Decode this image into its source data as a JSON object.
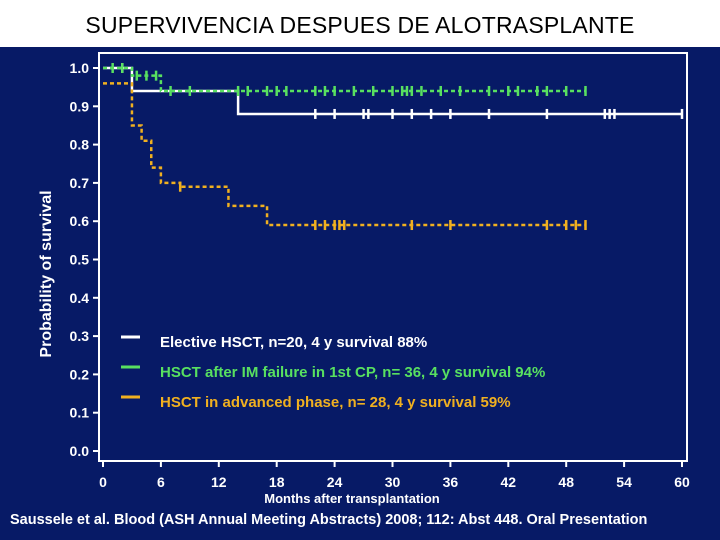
{
  "title": "SUPERVIVENCIA DESPUES DE ALOTRASPLANTE",
  "footer": "Saussele et al. Blood (ASH Annual Meeting Abstracts) 2008; 112: Abst 448. Oral Presentation",
  "chart_data": {
    "type": "line",
    "subtype": "kaplan-meier step curves",
    "xlabel": "Months after transplantation",
    "ylabel": "Probability of survival",
    "xlim": [
      0,
      60
    ],
    "ylim": [
      0,
      1
    ],
    "xticks": [
      "0",
      "6",
      "12",
      "18",
      "24",
      "30",
      "36",
      "42",
      "48",
      "54",
      "60"
    ],
    "yticks": [
      "0.0",
      "0.1",
      "0.2",
      "0.3",
      "0.4",
      "0.5",
      "0.6",
      "0.7",
      "0.8",
      "0.9",
      "1.0"
    ],
    "grid": false,
    "legend_position": "bottom-left",
    "series": [
      {
        "name": "Elective HSCT, n=20, 4 y survival 88%",
        "color": "#ffffff",
        "dash": false,
        "steps": [
          [
            0,
            1.0
          ],
          [
            3,
            0.94
          ],
          [
            14,
            0.88
          ],
          [
            60,
            0.88
          ]
        ],
        "censored": [
          [
            2,
            1.0
          ],
          [
            22,
            0.88
          ],
          [
            24,
            0.88
          ],
          [
            27,
            0.88
          ],
          [
            27.5,
            0.88
          ],
          [
            30,
            0.88
          ],
          [
            32,
            0.88
          ],
          [
            34,
            0.88
          ],
          [
            36,
            0.88
          ],
          [
            40,
            0.88
          ],
          [
            46,
            0.88
          ],
          [
            52,
            0.88
          ],
          [
            52.5,
            0.88
          ],
          [
            53,
            0.88
          ],
          [
            60,
            0.88
          ]
        ]
      },
      {
        "name": "HSCT after IM failure in 1st CP, n= 36, 4 y survival 94%",
        "color": "#58e060",
        "dash": true,
        "steps": [
          [
            0,
            1.0
          ],
          [
            3,
            0.98
          ],
          [
            6,
            0.94
          ],
          [
            50,
            0.94
          ]
        ],
        "censored": [
          [
            1,
            1.0
          ],
          [
            2,
            1.0
          ],
          [
            3.5,
            0.98
          ],
          [
            4.5,
            0.98
          ],
          [
            5.5,
            0.98
          ],
          [
            7,
            0.94
          ],
          [
            9,
            0.94
          ],
          [
            14,
            0.94
          ],
          [
            15,
            0.94
          ],
          [
            17,
            0.94
          ],
          [
            18,
            0.94
          ],
          [
            19,
            0.94
          ],
          [
            22,
            0.94
          ],
          [
            23,
            0.94
          ],
          [
            24,
            0.94
          ],
          [
            26,
            0.94
          ],
          [
            28,
            0.94
          ],
          [
            30,
            0.94
          ],
          [
            31,
            0.94
          ],
          [
            31.5,
            0.94
          ],
          [
            32,
            0.94
          ],
          [
            33,
            0.94
          ],
          [
            35,
            0.94
          ],
          [
            37,
            0.94
          ],
          [
            40,
            0.94
          ],
          [
            42,
            0.94
          ],
          [
            43,
            0.94
          ],
          [
            45,
            0.94
          ],
          [
            46,
            0.94
          ],
          [
            48,
            0.94
          ],
          [
            50,
            0.94
          ]
        ]
      },
      {
        "name": "HSCT in advanced phase, n= 28, 4 y survival 59%",
        "color": "#f0b020",
        "dash": true,
        "steps": [
          [
            0,
            0.96
          ],
          [
            3,
            0.85
          ],
          [
            4,
            0.81
          ],
          [
            5,
            0.74
          ],
          [
            6,
            0.7
          ],
          [
            8,
            0.69
          ],
          [
            13,
            0.64
          ],
          [
            17,
            0.59
          ],
          [
            50,
            0.59
          ]
        ],
        "censored": [
          [
            8,
            0.69
          ],
          [
            22,
            0.59
          ],
          [
            23,
            0.59
          ],
          [
            24,
            0.59
          ],
          [
            24.5,
            0.59
          ],
          [
            25,
            0.59
          ],
          [
            32,
            0.59
          ],
          [
            36,
            0.59
          ],
          [
            46,
            0.59
          ],
          [
            48,
            0.59
          ],
          [
            49,
            0.59
          ],
          [
            50,
            0.59
          ]
        ]
      }
    ]
  }
}
